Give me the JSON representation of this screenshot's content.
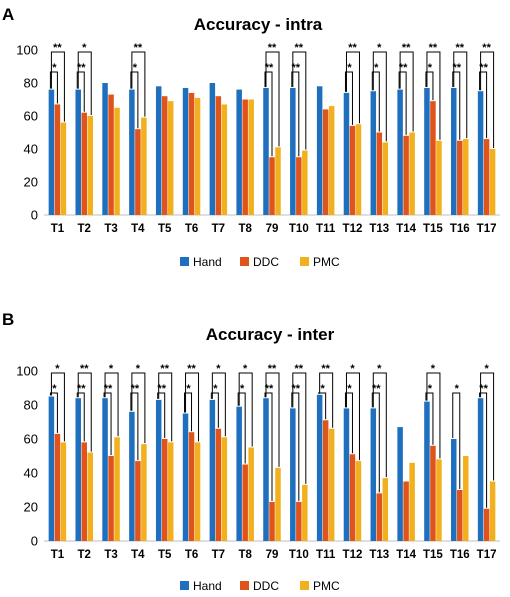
{
  "colors": {
    "Hand": "#1F6FBF",
    "DDC": "#E0541C",
    "PMC": "#F2B01E"
  },
  "chart_data": [
    {
      "panel": "A",
      "type": "bar",
      "title": "Accuracy - intra",
      "xlabel": "",
      "ylabel": "",
      "ylim": [
        0,
        100
      ],
      "yticks": [
        0,
        20,
        40,
        60,
        80,
        100
      ],
      "grid": false,
      "legend_position": "bottom",
      "categories": [
        "T1",
        "T2",
        "T3",
        "T4",
        "T5",
        "T6",
        "T7",
        "T8",
        "79",
        "T10",
        "T11",
        "T12",
        "T13",
        "T14",
        "T15",
        "T16",
        "T17"
      ],
      "series": [
        {
          "name": "Hand",
          "values": [
            76,
            76,
            80,
            76,
            78,
            77,
            80,
            76,
            77,
            77,
            78,
            74,
            75,
            76,
            77,
            77,
            75
          ]
        },
        {
          "name": "DDC",
          "values": [
            67,
            62,
            73,
            52,
            72,
            74,
            72,
            70,
            35,
            35,
            64,
            54,
            50,
            48,
            69,
            45,
            46
          ]
        },
        {
          "name": "PMC",
          "values": [
            56,
            60,
            65,
            59,
            69,
            71,
            67,
            70,
            41,
            39,
            66,
            55,
            44,
            50,
            45,
            46,
            40
          ]
        }
      ],
      "significance": [
        {
          "category": "T1",
          "hand_ddc": "*",
          "hand_pmc": "**"
        },
        {
          "category": "T2",
          "hand_ddc": "**",
          "hand_pmc": "*"
        },
        {
          "category": "T4",
          "hand_ddc": "*",
          "hand_pmc": "**"
        },
        {
          "category": "79",
          "hand_ddc": "**",
          "hand_pmc": "**"
        },
        {
          "category": "T10",
          "hand_ddc": "**",
          "hand_pmc": "**"
        },
        {
          "category": "T12",
          "hand_ddc": "*",
          "hand_pmc": "**"
        },
        {
          "category": "T13",
          "hand_ddc": "*",
          "hand_pmc": "*"
        },
        {
          "category": "T14",
          "hand_ddc": "**",
          "hand_pmc": "**"
        },
        {
          "category": "T15",
          "hand_ddc": "*",
          "hand_pmc": "**"
        },
        {
          "category": "T16",
          "hand_ddc": "**",
          "hand_pmc": "**"
        },
        {
          "category": "T17",
          "hand_ddc": "**",
          "hand_pmc": "**"
        }
      ]
    },
    {
      "panel": "B",
      "type": "bar",
      "title": "Accuracy - inter",
      "xlabel": "",
      "ylabel": "",
      "ylim": [
        0,
        100
      ],
      "yticks": [
        0,
        20,
        40,
        60,
        80,
        100
      ],
      "grid": false,
      "legend_position": "bottom",
      "categories": [
        "T1",
        "T2",
        "T3",
        "T4",
        "T5",
        "T6",
        "T7",
        "T8",
        "79",
        "T10",
        "T11",
        "T12",
        "T13",
        "T14",
        "T15",
        "T16",
        "T17"
      ],
      "series": [
        {
          "name": "Hand",
          "values": [
            85,
            84,
            84,
            76,
            83,
            75,
            83,
            79,
            84,
            78,
            86,
            78,
            78,
            67,
            82,
            60,
            84
          ]
        },
        {
          "name": "DDC",
          "values": [
            63,
            58,
            50,
            47,
            60,
            64,
            66,
            45,
            23,
            23,
            71,
            51,
            28,
            35,
            56,
            30,
            19
          ]
        },
        {
          "name": "PMC",
          "values": [
            58,
            52,
            61,
            57,
            58,
            58,
            61,
            55,
            43,
            33,
            66,
            47,
            37,
            46,
            48,
            50,
            35
          ]
        }
      ],
      "significance": [
        {
          "category": "T1",
          "hand_ddc": "*",
          "hand_pmc": "*"
        },
        {
          "category": "T2",
          "hand_ddc": "**",
          "hand_pmc": "**"
        },
        {
          "category": "T3",
          "hand_ddc": "**",
          "hand_pmc": "*"
        },
        {
          "category": "T4",
          "hand_ddc": "**",
          "hand_pmc": "*"
        },
        {
          "category": "T5",
          "hand_ddc": "**",
          "hand_pmc": "**"
        },
        {
          "category": "T6",
          "hand_ddc": "*",
          "hand_pmc": "**"
        },
        {
          "category": "T7",
          "hand_ddc": "*",
          "hand_pmc": "*"
        },
        {
          "category": "T8",
          "hand_ddc": "*",
          "hand_pmc": "*"
        },
        {
          "category": "79",
          "hand_ddc": "**",
          "hand_pmc": "**"
        },
        {
          "category": "T10",
          "hand_ddc": "**",
          "hand_pmc": "**"
        },
        {
          "category": "T11",
          "hand_ddc": "*",
          "hand_pmc": "**"
        },
        {
          "category": "T12",
          "hand_ddc": "*",
          "hand_pmc": "*"
        },
        {
          "category": "T13",
          "hand_ddc": "**",
          "hand_pmc": "*"
        },
        {
          "category": "T15",
          "hand_ddc": "*",
          "hand_pmc": "*"
        },
        {
          "category": "T16",
          "hand_ddc": "*",
          "hand_pmc": ""
        },
        {
          "category": "T17",
          "hand_ddc": "**",
          "hand_pmc": "*"
        }
      ]
    }
  ]
}
